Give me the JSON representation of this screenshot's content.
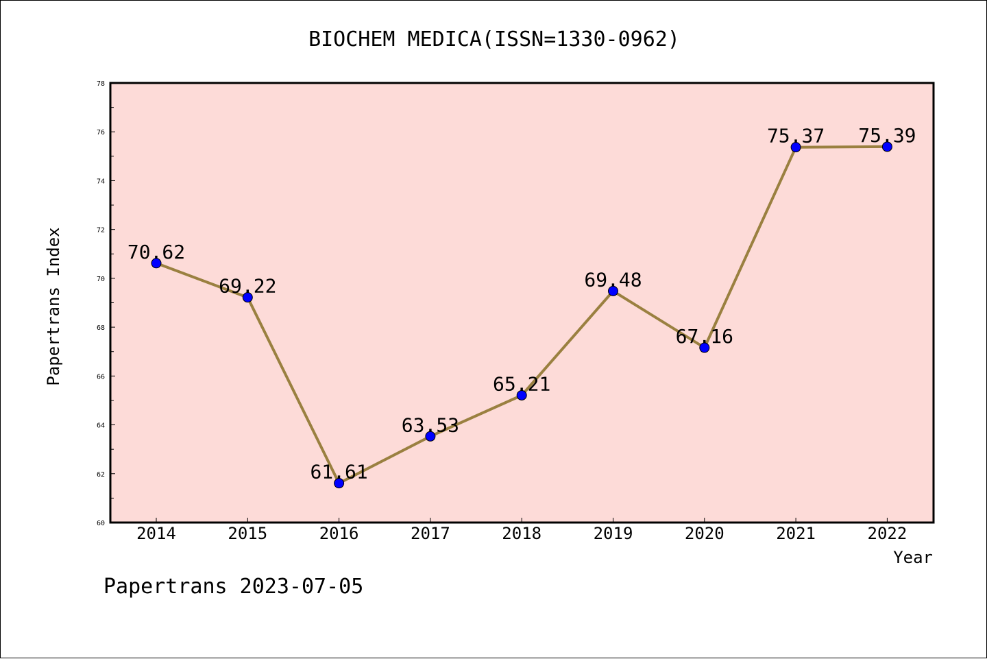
{
  "chart_data": {
    "type": "line",
    "title": "BIOCHEM MEDICA(ISSN=1330-0962)",
    "xlabel": "Year",
    "ylabel": "Papertrans Index",
    "categories": [
      "2014",
      "2015",
      "2016",
      "2017",
      "2018",
      "2019",
      "2020",
      "2021",
      "2022"
    ],
    "series": [
      {
        "values": [
          70.62,
          69.22,
          61.61,
          63.53,
          65.21,
          69.48,
          67.16,
          75.37,
          75.39
        ],
        "labels": [
          "70.62",
          "69.22",
          "61.61",
          "63.53",
          "65.21",
          "69.48",
          "67.16",
          "75.37",
          "75.39"
        ],
        "line_color": "#9a8040",
        "marker_color": "#0000ff"
      }
    ],
    "ylim": [
      60,
      78
    ],
    "yticks": [
      "60",
      "62",
      "64",
      "66",
      "68",
      "70",
      "72",
      "74",
      "76",
      "78"
    ],
    "grid": false,
    "legend": "none",
    "plot_background": "#fddbd8"
  },
  "footer": "Papertrans 2023-07-05"
}
